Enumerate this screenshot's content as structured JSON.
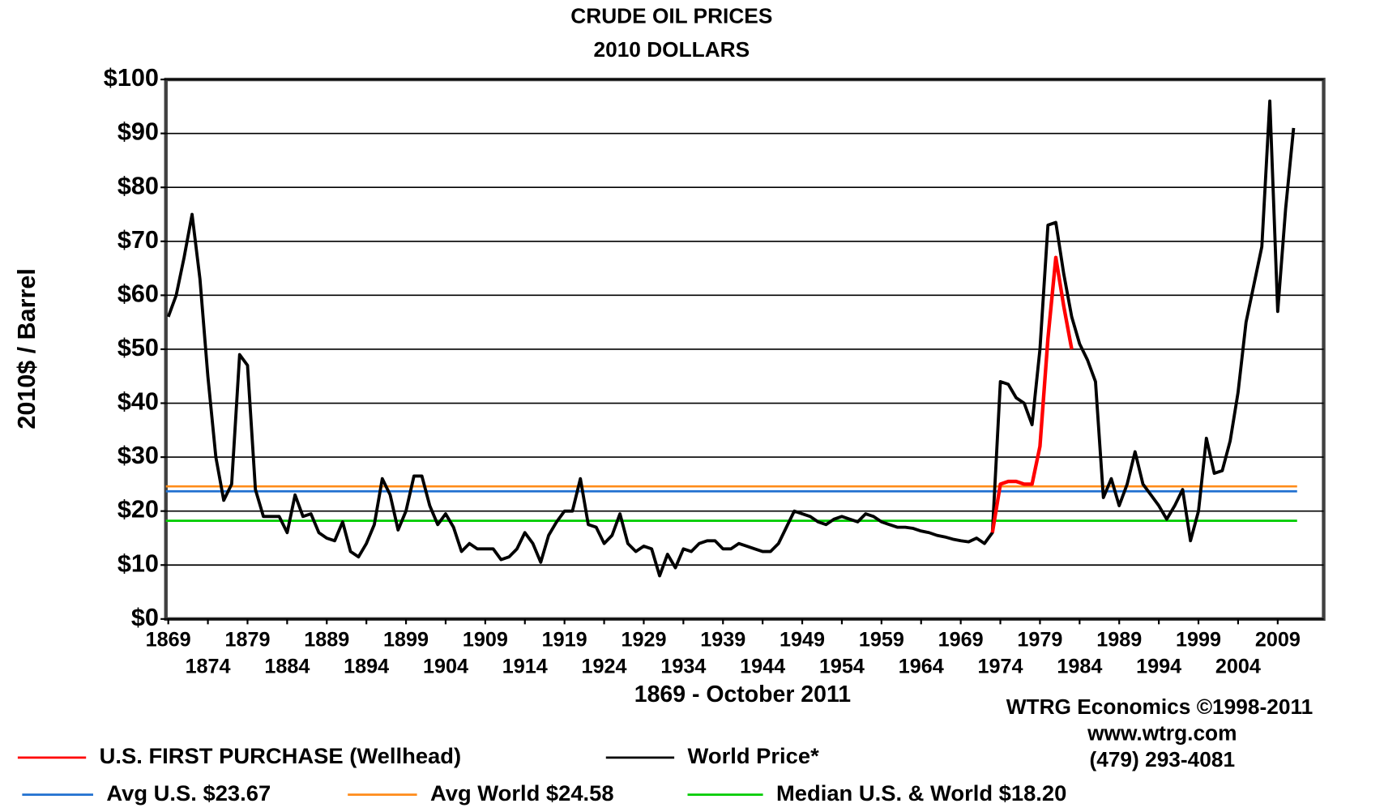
{
  "chart_data": {
    "type": "line",
    "title": "CRUDE OIL PRICES",
    "subtitle": "2010 DOLLARS",
    "y_label": "2010$ / Barrel",
    "x_label": "1869 - October 2011",
    "annotations": [
      "WTRG Economics  ©1998-2011",
      "www.wtrg.com",
      "(479) 293-4081"
    ],
    "xlim": [
      1868.7,
      2014.8
    ],
    "xticks": [
      1869,
      1874,
      1879,
      1884,
      1889,
      1894,
      1899,
      1904,
      1909,
      1914,
      1919,
      1924,
      1929,
      1934,
      1939,
      1944,
      1949,
      1954,
      1959,
      1964,
      1969,
      1974,
      1979,
      1984,
      1989,
      1994,
      1999,
      2004,
      2009
    ],
    "ylim": [
      0,
      100
    ],
    "yticks": [
      {
        "value": 0,
        "label": "$0"
      },
      {
        "value": 10,
        "label": "$10"
      },
      {
        "value": 20,
        "label": "$20"
      },
      {
        "value": 30,
        "label": "$30"
      },
      {
        "value": 40,
        "label": "$40"
      },
      {
        "value": 50,
        "label": "$50"
      },
      {
        "value": 60,
        "label": "$60"
      },
      {
        "value": 70,
        "label": "$70"
      },
      {
        "value": 80,
        "label": "$80"
      },
      {
        "value": 90,
        "label": "$90"
      },
      {
        "value": 100,
        "label": "$100"
      }
    ],
    "grid": true,
    "series": [
      {
        "name": "World Price*",
        "color": "#000000",
        "x": [
          1869,
          1870,
          1871,
          1872,
          1873,
          1874,
          1875,
          1876,
          1877,
          1878,
          1879,
          1880,
          1881,
          1882,
          1883,
          1884,
          1885,
          1886,
          1887,
          1888,
          1889,
          1890,
          1891,
          1892,
          1893,
          1894,
          1895,
          1896,
          1897,
          1898,
          1899,
          1900,
          1901,
          1902,
          1903,
          1904,
          1905,
          1906,
          1907,
          1908,
          1909,
          1910,
          1911,
          1912,
          1913,
          1914,
          1915,
          1916,
          1917,
          1918,
          1919,
          1920,
          1921,
          1922,
          1923,
          1924,
          1925,
          1926,
          1927,
          1928,
          1929,
          1930,
          1931,
          1932,
          1933,
          1934,
          1935,
          1936,
          1937,
          1938,
          1939,
          1940,
          1941,
          1942,
          1943,
          1944,
          1945,
          1946,
          1947,
          1948,
          1949,
          1950,
          1951,
          1952,
          1953,
          1954,
          1955,
          1956,
          1957,
          1958,
          1959,
          1960,
          1961,
          1962,
          1963,
          1964,
          1965,
          1966,
          1967,
          1968,
          1969,
          1970,
          1971,
          1972,
          1973,
          1974,
          1975,
          1976,
          1977,
          1978,
          1979,
          1980,
          1981,
          1982,
          1983,
          1984,
          1985,
          1986,
          1987,
          1988,
          1989,
          1990,
          1991,
          1992,
          1993,
          1994,
          1995,
          1996,
          1997,
          1998,
          1999,
          2000,
          2001,
          2002,
          2003,
          2004,
          2005,
          2006,
          2007,
          2008,
          2009,
          2010,
          2011
        ],
        "values": [
          56,
          60,
          67,
          75,
          63,
          45,
          30,
          22,
          25,
          49,
          47,
          24,
          19,
          19,
          19,
          16,
          23,
          19,
          19.5,
          16,
          15,
          14.5,
          18,
          12.5,
          11.5,
          14,
          17.5,
          26,
          23,
          16.5,
          20,
          26.5,
          26.5,
          21,
          17.5,
          19.5,
          17,
          12.5,
          14,
          13,
          13,
          13,
          11,
          11.5,
          13,
          16,
          14,
          10.5,
          15.5,
          18,
          20,
          20,
          26,
          17.5,
          17,
          14,
          15.5,
          19.5,
          14,
          12.5,
          13.5,
          13,
          8,
          12,
          9.5,
          13,
          12.5,
          14,
          14.5,
          14.5,
          13,
          13,
          14,
          13.5,
          13,
          12.5,
          12.5,
          14,
          17,
          20,
          19.5,
          19,
          18,
          17.5,
          18.5,
          19,
          18.5,
          18,
          19.5,
          19,
          18,
          17.5,
          17,
          17,
          16.8,
          16.3,
          16,
          15.5,
          15.2,
          14.8,
          14.5,
          14.3,
          15,
          14,
          16,
          44,
          43.5,
          41,
          40,
          36,
          50,
          73,
          73.5,
          64,
          56,
          51,
          48,
          44,
          22.5,
          26,
          21,
          25,
          31,
          25,
          23,
          21,
          18.5,
          21,
          24,
          14.5,
          20,
          33.5,
          27,
          27.5,
          33,
          42,
          55,
          62,
          69,
          96,
          57,
          76,
          91
        ]
      },
      {
        "name": "U.S. FIRST PURCHASE (Wellhead)",
        "color": "#ff0000",
        "x": [
          1973,
          1974,
          1975,
          1976,
          1977,
          1978,
          1979,
          1980,
          1981,
          1982,
          1983
        ],
        "values": [
          16,
          25,
          25.5,
          25.5,
          25,
          25,
          32,
          52,
          67,
          58,
          50
        ]
      }
    ],
    "reference_lines": [
      {
        "name": "Avg U.S. $23.67",
        "value": 23.67,
        "color": "#2070d0"
      },
      {
        "name": "Avg World $24.58",
        "value": 24.58,
        "color": "#ff8c1a"
      },
      {
        "name": "Median U.S. & World  $18.20",
        "value": 18.2,
        "color": "#00cc00"
      }
    ]
  }
}
